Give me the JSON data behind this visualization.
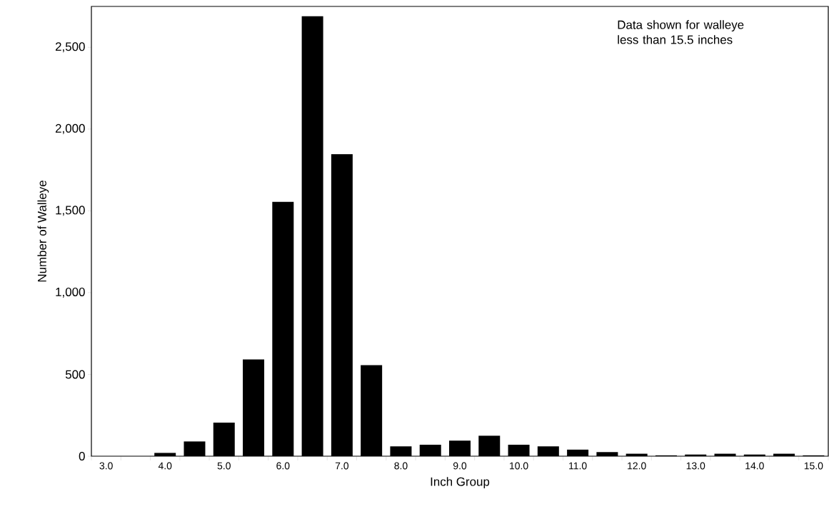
{
  "chart_data": {
    "type": "bar",
    "xlabel": "Inch Group",
    "ylabel": "Number of Walleye",
    "annotations": [
      "Data shown for walleye less than 15.5 inches"
    ],
    "categories": [
      "3.0",
      null,
      "4.0",
      null,
      "5.0",
      null,
      "6.0",
      null,
      "7.0",
      null,
      "8.0",
      null,
      "9.0",
      null,
      "10.0",
      null,
      "11.0",
      null,
      "12.0",
      null,
      "13.0",
      null,
      "14.0",
      null,
      "15.0"
    ],
    "values": [
      null,
      null,
      20,
      90,
      205,
      592,
      1555,
      2690,
      1846,
      557,
      60,
      70,
      95,
      125,
      70,
      60,
      40,
      25,
      15,
      5,
      10,
      15,
      10,
      15,
      5
    ],
    "color": "#000000",
    "ylim": [
      0,
      2750
    ],
    "yticks": [
      {
        "value": 0,
        "label": "0"
      },
      {
        "value": 500,
        "label": "500"
      },
      {
        "value": 1000,
        "label": "1,000"
      },
      {
        "value": 1500,
        "label": "1,500"
      },
      {
        "value": 2000,
        "label": "2,000"
      },
      {
        "value": 2500,
        "label": "2,500"
      }
    ],
    "grid": false
  }
}
